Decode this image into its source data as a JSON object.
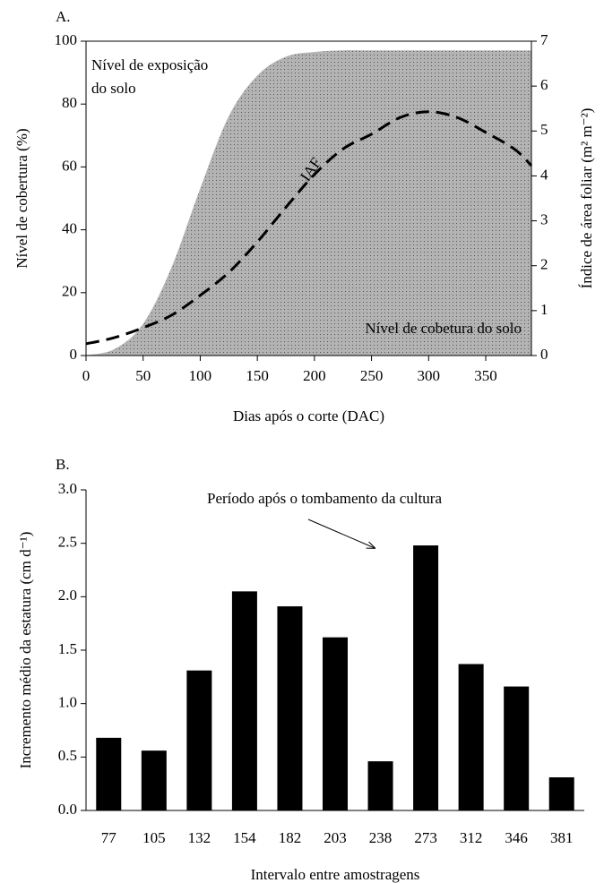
{
  "chart_data": [
    {
      "type": "area-line",
      "panel": "A.",
      "x_label": "Dias após o corte (DAC)",
      "y_label": "Nível de cobertura (%)",
      "y2_label": "Índice de área foliar (m² m⁻²)",
      "annotations": [
        "Nível de exposição",
        "do solo",
        "IAF",
        "Nível de cobetura do solo"
      ],
      "x": [
        0,
        25,
        50,
        75,
        100,
        125,
        150,
        175,
        200,
        225,
        250,
        275,
        300,
        325,
        350,
        375,
        390
      ],
      "series": [
        {
          "type": "area",
          "color": "#b3b3b3",
          "values": [
            0,
            2,
            10,
            28,
            53,
            76,
            89,
            95,
            96.5,
            97,
            97,
            97,
            97,
            97,
            97,
            97,
            97
          ]
        },
        {
          "type": "line",
          "axis": "y2",
          "color": "#000000",
          "dashed": true,
          "values": [
            0.26,
            0.4,
            0.62,
            0.9,
            1.34,
            1.85,
            2.53,
            3.3,
            4.03,
            4.6,
            4.93,
            5.3,
            5.43,
            5.3,
            4.97,
            4.6,
            4.23
          ]
        }
      ],
      "xlim": [
        0,
        390
      ],
      "xticks": [
        0,
        50,
        100,
        150,
        200,
        250,
        300,
        350
      ],
      "ylim": [
        0,
        100
      ],
      "yticks": [
        0,
        20,
        40,
        60,
        80,
        100
      ],
      "y2lim": [
        0,
        7
      ],
      "y2ticks": [
        0,
        1,
        2,
        3,
        4,
        5,
        6,
        7
      ]
    },
    {
      "type": "bar",
      "panel": "B.",
      "x_label": "Intervalo entre amostragens",
      "y_label": "Incremento médio da estatura (cm d⁻¹)",
      "annotations": [
        "Período após o tombamento da cultura"
      ],
      "categories": [
        "77",
        "105",
        "132",
        "154",
        "182",
        "203",
        "238",
        "273",
        "312",
        "346",
        "381"
      ],
      "values": [
        0.68,
        0.56,
        1.31,
        2.05,
        1.91,
        1.62,
        0.46,
        2.48,
        1.37,
        1.16,
        0.31
      ],
      "color": "#000000",
      "ylim": [
        0,
        3
      ],
      "yticks": [
        {
          "value": 0,
          "label": "0.0"
        },
        0.5,
        {
          "value": 1,
          "label": "1.0"
        },
        1.5,
        {
          "value": 2,
          "label": "2.0"
        },
        2.5,
        {
          "value": 3,
          "label": "3.0"
        }
      ]
    }
  ]
}
